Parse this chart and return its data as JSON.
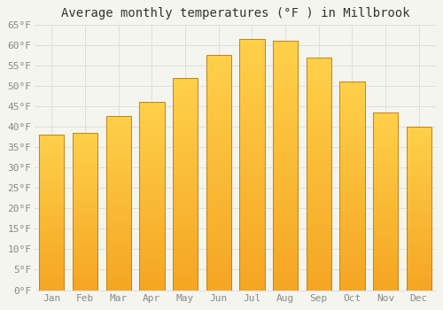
{
  "title": "Average monthly temperatures (°F ) in Millbrook",
  "months": [
    "Jan",
    "Feb",
    "Mar",
    "Apr",
    "May",
    "Jun",
    "Jul",
    "Aug",
    "Sep",
    "Oct",
    "Nov",
    "Dec"
  ],
  "values": [
    38,
    38.5,
    42.5,
    46,
    52,
    57.5,
    61.5,
    61,
    57,
    51,
    43.5,
    40
  ],
  "bar_color_top": "#FFD04A",
  "bar_color_bottom": "#F5A623",
  "bar_edge_color": "#C8820A",
  "ylim": [
    0,
    65
  ],
  "yticks": [
    0,
    5,
    10,
    15,
    20,
    25,
    30,
    35,
    40,
    45,
    50,
    55,
    60,
    65
  ],
  "background_color": "#F5F5F0",
  "plot_bg_color": "#F5F5F0",
  "grid_color": "#DEDEDE",
  "title_fontsize": 10,
  "tick_fontsize": 8,
  "tick_color": "#888888",
  "title_color": "#333333"
}
